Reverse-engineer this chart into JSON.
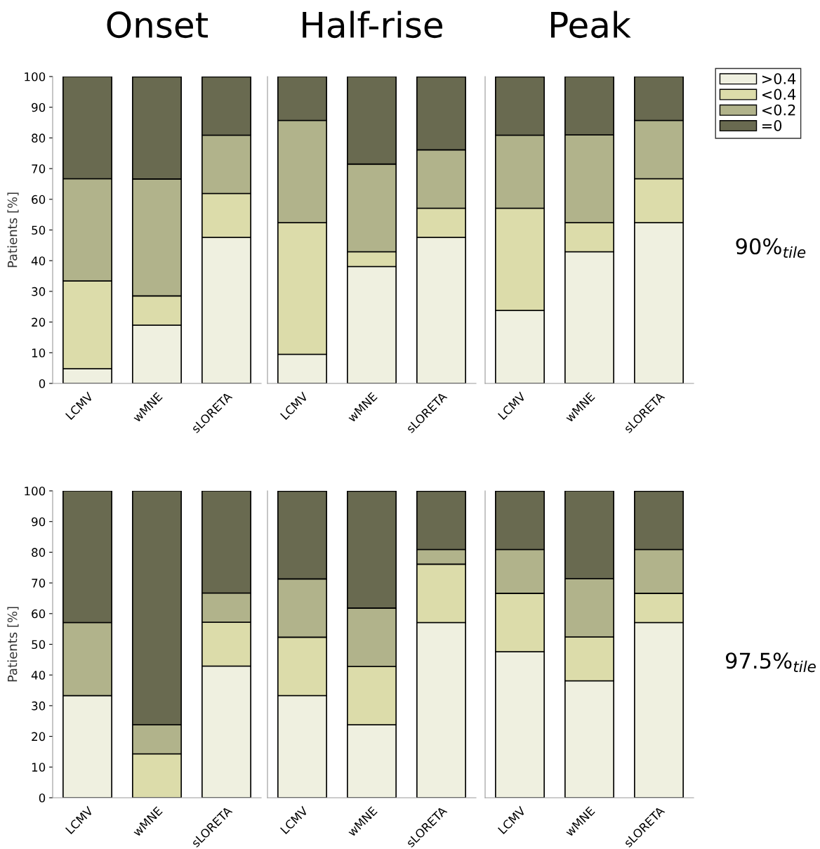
{
  "chart_data": [
    {
      "type": "bar",
      "stacked": true,
      "title": "Onset",
      "ylabel": "Patients [%]",
      "categories": [
        "LCMV",
        "wMNE",
        "sLORETA"
      ],
      "ylim": [
        0,
        100
      ],
      "yticks": [
        0,
        10,
        20,
        30,
        40,
        50,
        60,
        70,
        80,
        90,
        100
      ],
      "grid": false,
      "legend": false,
      "series": [
        {
          "color": "#eff0e0",
          "values": [
            4.8,
            19.0,
            47.6
          ]
        },
        {
          "color": "#dcdcaa",
          "values": [
            28.6,
            9.5,
            14.3
          ]
        },
        {
          "color": "#b1b38b",
          "values": [
            33.3,
            38.1,
            19.0
          ]
        },
        {
          "color": "#696a50",
          "values": [
            33.3,
            33.3,
            19.0
          ]
        }
      ]
    },
    {
      "type": "bar",
      "stacked": true,
      "title": "Half-rise",
      "categories": [
        "LCMV",
        "wMNE",
        "sLORETA"
      ],
      "ylim": [
        0,
        100
      ],
      "yticks": [
        0,
        10,
        20,
        30,
        40,
        50,
        60,
        70,
        80,
        90,
        100
      ],
      "tick_labels": "x",
      "grid": false,
      "legend": false,
      "series": [
        {
          "color": "#eff0e0",
          "values": [
            9.5,
            38.1,
            47.6
          ]
        },
        {
          "color": "#dcdcaa",
          "values": [
            42.9,
            4.8,
            9.5
          ]
        },
        {
          "color": "#b1b38b",
          "values": [
            33.3,
            28.6,
            19.0
          ]
        },
        {
          "color": "#696a50",
          "values": [
            14.3,
            28.5,
            23.8
          ]
        }
      ]
    },
    {
      "type": "bar",
      "stacked": true,
      "title": "Peak",
      "categories": [
        "LCMV",
        "wMNE",
        "sLORETA"
      ],
      "ylim": [
        0,
        100
      ],
      "yticks": [
        0,
        10,
        20,
        30,
        40,
        50,
        60,
        70,
        80,
        90,
        100
      ],
      "tick_labels": "x",
      "grid": false,
      "legend": "top right",
      "annotations": [
        "90%$_{tile}$"
      ],
      "series": [
        {
          "name": ">0.4",
          "color": "#eff0e0",
          "values": [
            23.8,
            42.9,
            52.4
          ]
        },
        {
          "name": "<0.4",
          "color": "#dcdcaa",
          "values": [
            33.3,
            9.5,
            14.3
          ]
        },
        {
          "name": "<0.2",
          "color": "#b1b38b",
          "values": [
            23.8,
            28.6,
            19.0
          ]
        },
        {
          "name": "=0",
          "color": "#696a50",
          "values": [
            19.0,
            19.0,
            14.3
          ]
        }
      ]
    },
    {
      "type": "bar",
      "stacked": true,
      "ylabel": "Patients [%]",
      "categories": [
        "LCMV",
        "wMNE",
        "sLORETA"
      ],
      "ylim": [
        0,
        100
      ],
      "yticks": [
        0,
        10,
        20,
        30,
        40,
        50,
        60,
        70,
        80,
        90,
        100
      ],
      "grid": false,
      "legend": false,
      "series": [
        {
          "color": "#eff0e0",
          "values": [
            33.3,
            0,
            42.9
          ]
        },
        {
          "color": "#dcdcaa",
          "values": [
            0,
            14.3,
            14.3
          ]
        },
        {
          "color": "#b1b38b",
          "values": [
            23.8,
            9.5,
            9.5
          ]
        },
        {
          "color": "#696a50",
          "values": [
            42.9,
            76.2,
            33.3
          ]
        }
      ]
    },
    {
      "type": "bar",
      "stacked": true,
      "categories": [
        "LCMV",
        "wMNE",
        "sLORETA"
      ],
      "ylim": [
        0,
        100
      ],
      "yticks": [
        0,
        10,
        20,
        30,
        40,
        50,
        60,
        70,
        80,
        90,
        100
      ],
      "tick_labels": "x",
      "grid": false,
      "legend": false,
      "series": [
        {
          "color": "#eff0e0",
          "values": [
            33.3,
            23.8,
            57.1
          ]
        },
        {
          "color": "#dcdcaa",
          "values": [
            19.0,
            19.0,
            19.0
          ]
        },
        {
          "color": "#b1b38b",
          "values": [
            19.0,
            19.0,
            4.8
          ]
        },
        {
          "color": "#696a50",
          "values": [
            28.6,
            38.1,
            19.0
          ]
        }
      ]
    },
    {
      "type": "bar",
      "stacked": true,
      "categories": [
        "LCMV",
        "wMNE",
        "sLORETA"
      ],
      "ylim": [
        0,
        100
      ],
      "yticks": [
        0,
        10,
        20,
        30,
        40,
        50,
        60,
        70,
        80,
        90,
        100
      ],
      "tick_labels": "x",
      "grid": false,
      "legend": false,
      "annotations": [
        "97.5%$_{tile}$"
      ],
      "series": [
        {
          "color": "#eff0e0",
          "values": [
            47.6,
            38.1,
            57.1
          ]
        },
        {
          "color": "#dcdcaa",
          "values": [
            19.0,
            14.3,
            9.5
          ]
        },
        {
          "color": "#b1b38b",
          "values": [
            14.3,
            19.0,
            14.3
          ]
        },
        {
          "color": "#696a50",
          "values": [
            19.0,
            28.6,
            19.0
          ]
        }
      ]
    }
  ]
}
